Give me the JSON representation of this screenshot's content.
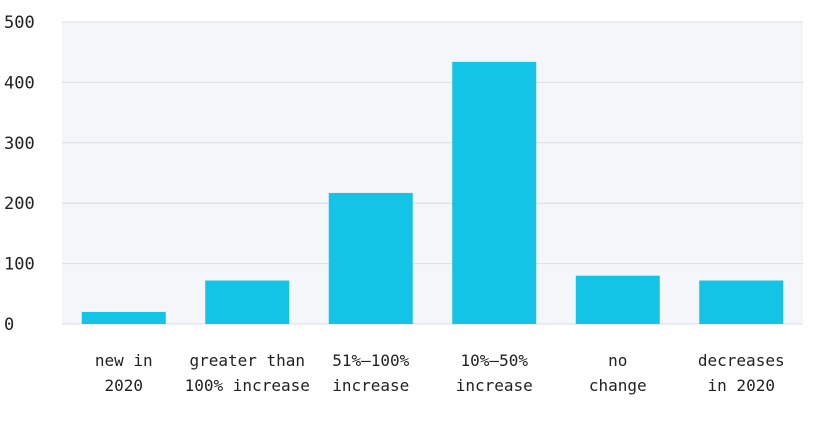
{
  "chart_data": {
    "type": "bar",
    "categories": [
      [
        "new in",
        "2020"
      ],
      [
        "greater than",
        "100% increase"
      ],
      [
        "51%–100%",
        "increase"
      ],
      [
        "10%–50%",
        "increase"
      ],
      [
        "no",
        "change"
      ],
      [
        "decreases",
        "in 2020"
      ]
    ],
    "values": [
      20,
      72,
      217,
      434,
      80,
      72
    ],
    "ylim": [
      0,
      500
    ],
    "yticks": [
      0,
      100,
      200,
      300,
      400,
      500
    ],
    "grid": true,
    "colors": {
      "bar": "#14C4E6",
      "plot_bg": "#F5F6FA",
      "grid": "#DADCE3"
    }
  }
}
